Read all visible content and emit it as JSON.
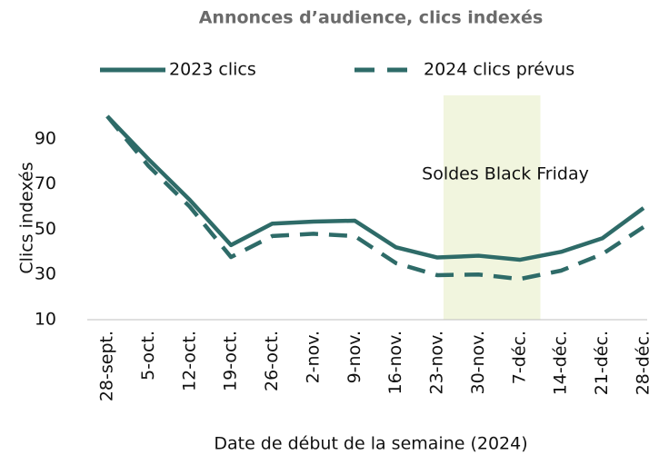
{
  "chart_data": {
    "type": "line",
    "title": "Annonces d’audience, clics indexés",
    "x_label": "Date de début de la semaine (2024)",
    "y_label": "Clics indexés",
    "categories": [
      "28-sept.",
      "5-oct.",
      "12-oct.",
      "19-oct.",
      "26-oct.",
      "2-nov.",
      "9-nov.",
      "16-nov.",
      "23-nov.",
      "30-nov.",
      "7-déc.",
      "14-déc.",
      "21-déc.",
      "28-déc."
    ],
    "series": [
      {
        "name": "2023 clics",
        "color": "#2e6b68",
        "dash": "solid",
        "values": [
          100,
          81,
          63,
          43,
          52.5,
          53.4,
          53.8,
          42,
          37.5,
          38.3,
          36.5,
          40,
          46,
          59.4
        ]
      },
      {
        "name": "2024 clics prévus",
        "color": "#2e6b68",
        "dash": "dashed",
        "values": [
          100,
          78,
          60,
          37.7,
          47,
          48,
          47,
          35,
          29.7,
          30,
          28,
          31.7,
          39,
          51
        ]
      }
    ],
    "highlight": {
      "label": "Soldes Black Friday",
      "from": "23-nov.",
      "to": "7-déc.",
      "color": "#f1f5de"
    },
    "ylim": [
      10,
      100
    ],
    "yticks": [
      10,
      30,
      50,
      70,
      90
    ],
    "grid": false,
    "legend": "top"
  }
}
